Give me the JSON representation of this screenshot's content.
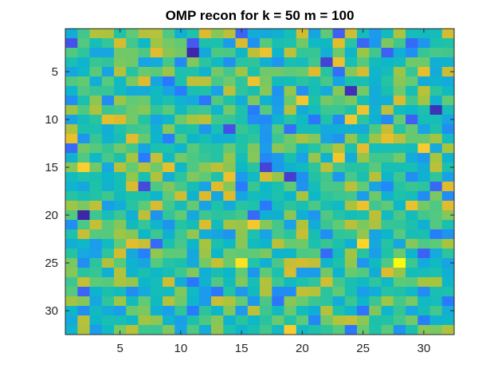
{
  "chart_data": {
    "type": "heatmap",
    "title": "OMP recon for k = 50 m = 100",
    "xlabel": "",
    "ylabel": "",
    "rows": 32,
    "cols": 32,
    "colormap": "parula",
    "clim": [
      -1,
      1
    ],
    "xlim": [
      0.5,
      32.5
    ],
    "ylim": [
      0.5,
      32.5
    ],
    "y_reversed": true,
    "x_ticks": [
      5,
      10,
      15,
      20,
      25,
      30
    ],
    "y_ticks": [
      5,
      10,
      15,
      20,
      25,
      30
    ],
    "x_tick_labels": [
      "5",
      "10",
      "15",
      "20",
      "25",
      "30"
    ],
    "y_tick_labels": [
      "5",
      "10",
      "15",
      "20",
      "25",
      "30"
    ],
    "grid": false,
    "seed": 50100
  }
}
